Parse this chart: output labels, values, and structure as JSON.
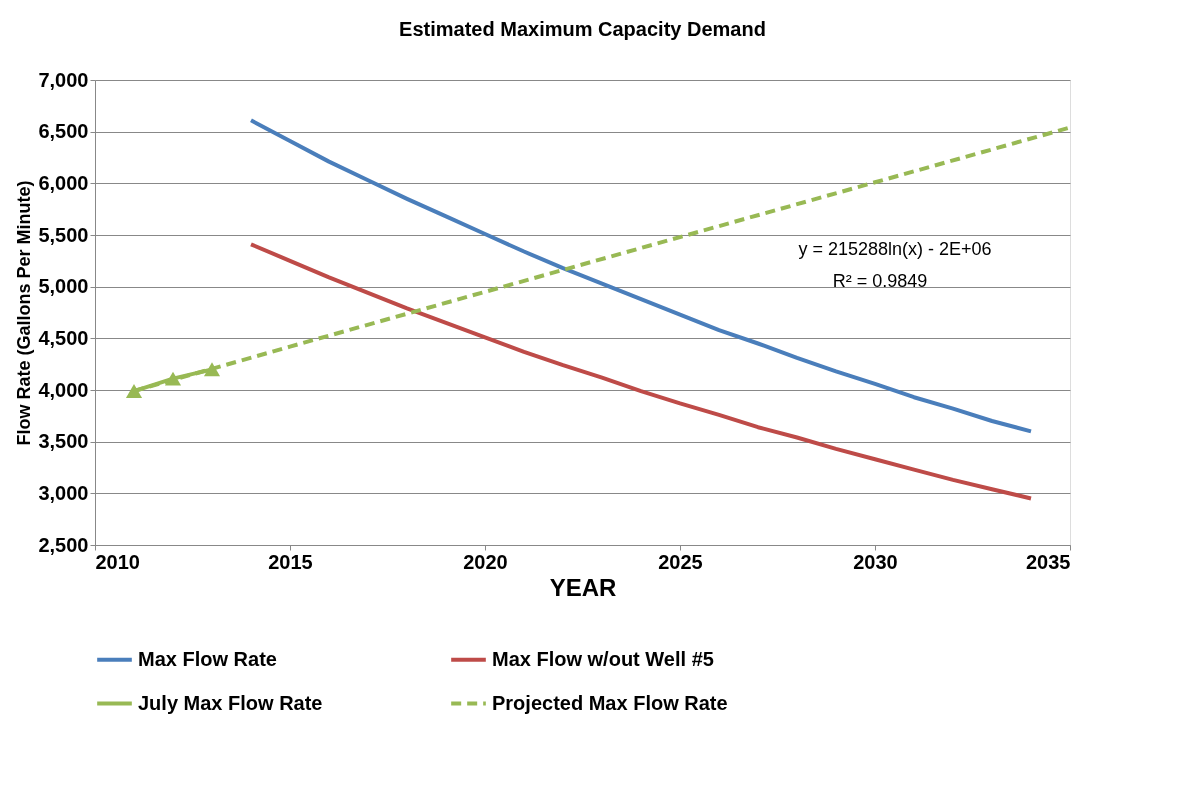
{
  "chart_data": {
    "type": "line",
    "title": "Estimated Maximum Capacity Demand",
    "xlabel": "YEAR",
    "ylabel": "Flow Rate (Gallons Per Minute)",
    "xlim": [
      2010,
      2035
    ],
    "xticks": [
      2010,
      2015,
      2020,
      2025,
      2030,
      2035
    ],
    "ylim": [
      2500,
      7000
    ],
    "yticks": [
      {
        "value": 2500,
        "label": "2,500"
      },
      {
        "value": 3000,
        "label": "3,000"
      },
      {
        "value": 3500,
        "label": "3,500"
      },
      {
        "value": 4000,
        "label": "4,000"
      },
      {
        "value": 4500,
        "label": "4,500"
      },
      {
        "value": 5000,
        "label": "5,000"
      },
      {
        "value": 5500,
        "label": "5,500"
      },
      {
        "value": 6000,
        "label": "6,000"
      },
      {
        "value": 6500,
        "label": "6,500"
      },
      {
        "value": 7000,
        "label": "7,000"
      }
    ],
    "grid": "y",
    "legend": "bottom",
    "annotations": [
      "y = 215288ln(x) - 2E+06",
      "R² = 0.9849"
    ],
    "series": [
      {
        "name": "Max Flow Rate",
        "color": "#4a7ebb",
        "line_style": "solid",
        "marker": "none",
        "x": [
          2014,
          2015,
          2016,
          2017,
          2018,
          2019,
          2020,
          2021,
          2022,
          2023,
          2024,
          2025,
          2026,
          2027,
          2028,
          2029,
          2030,
          2031,
          2032,
          2033,
          2034
        ],
        "values": [
          6610,
          6410,
          6210,
          6030,
          5850,
          5680,
          5510,
          5340,
          5180,
          5030,
          4880,
          4730,
          4580,
          4450,
          4310,
          4180,
          4060,
          3930,
          3820,
          3700,
          3600
        ]
      },
      {
        "name": "Max Flow w/out Well #5",
        "color": "#be4b48",
        "line_style": "solid",
        "marker": "none",
        "x": [
          2014,
          2015,
          2016,
          2017,
          2018,
          2019,
          2020,
          2021,
          2022,
          2023,
          2024,
          2025,
          2026,
          2027,
          2028,
          2029,
          2030,
          2031,
          2032,
          2033,
          2034
        ],
        "values": [
          5410,
          5250,
          5090,
          4940,
          4790,
          4650,
          4510,
          4370,
          4240,
          4120,
          3990,
          3870,
          3760,
          3640,
          3540,
          3430,
          3330,
          3230,
          3130,
          3040,
          2950
        ]
      },
      {
        "name": "July Max Flow Rate",
        "color": "#98b954",
        "line_style": "solid",
        "marker": "triangle",
        "x": [
          2011,
          2012,
          2013
        ],
        "values": [
          3990,
          4110,
          4200
        ]
      },
      {
        "name": "Projected Max Flow Rate",
        "color": "#98b954",
        "line_style": "dashed",
        "marker": "none",
        "x": [
          2011,
          2015,
          2020,
          2025,
          2030,
          2035
        ],
        "values": [
          3990,
          4420,
          4950,
          5480,
          6010,
          6540
        ]
      }
    ]
  }
}
